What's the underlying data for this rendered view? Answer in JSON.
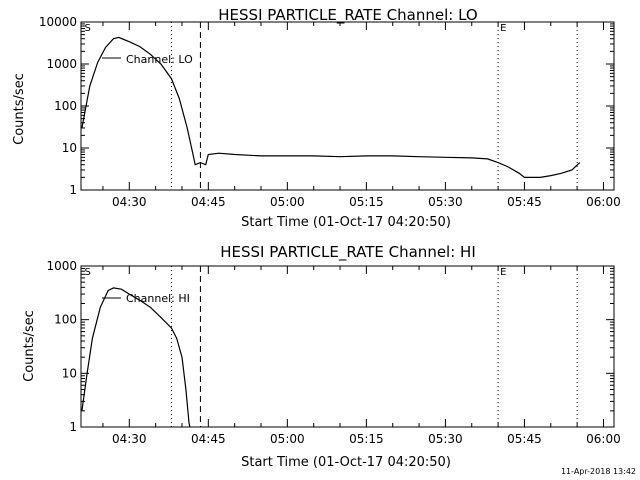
{
  "footer": {
    "timestamp": "11-Apr-2018 13:42"
  },
  "chart_data": [
    {
      "type": "line",
      "title": "HESSI PARTICLE_RATE Channel: LO",
      "xlabel": "Start Time (01-Oct-17 04:20:50)",
      "ylabel": "Counts/sec",
      "yscale": "log",
      "xlim": [
        "04:20:50",
        "06:02:00"
      ],
      "ylim": [
        1,
        10000
      ],
      "x_ticks": [
        "04:30",
        "04:45",
        "05:00",
        "05:15",
        "05:30",
        "05:45",
        "06:00"
      ],
      "y_ticks": [
        "1",
        "10",
        "100",
        "1000",
        "10000"
      ],
      "markers": [
        {
          "label": "S",
          "time": "04:21:30",
          "style": "none"
        },
        {
          "label": "",
          "time": "04:38:00",
          "style": "dotted"
        },
        {
          "label": "",
          "time": "04:43:30",
          "style": "dashed"
        },
        {
          "label": "E",
          "time": "05:40:00",
          "style": "dotted"
        },
        {
          "label": "",
          "time": "05:55:00",
          "style": "dotted"
        }
      ],
      "series": [
        {
          "name": "Channel: LO",
          "points": [
            [
              "04:21:00",
              30
            ],
            [
              "04:22:30",
              300
            ],
            [
              "04:24:00",
              1100
            ],
            [
              "04:25:30",
              2500
            ],
            [
              "04:27:00",
              4000
            ],
            [
              "04:28:00",
              4300
            ],
            [
              "04:30:00",
              3400
            ],
            [
              "04:32:00",
              2600
            ],
            [
              "04:34:00",
              1700
            ],
            [
              "04:36:00",
              1000
            ],
            [
              "04:38:00",
              450
            ],
            [
              "04:39:30",
              150
            ],
            [
              "04:41:00",
              30
            ],
            [
              "04:42:00",
              8
            ],
            [
              "04:42:30",
              4
            ],
            [
              "04:43:30",
              4.5
            ],
            [
              "04:44:30",
              4
            ],
            [
              "04:45:00",
              7
            ],
            [
              "04:47:00",
              7.5
            ],
            [
              "04:50:00",
              7
            ],
            [
              "04:55:00",
              6.5
            ],
            [
              "05:00:00",
              6.5
            ],
            [
              "05:05:00",
              6.5
            ],
            [
              "05:10:00",
              6.2
            ],
            [
              "05:15:00",
              6.5
            ],
            [
              "05:20:00",
              6.5
            ],
            [
              "05:25:00",
              6.2
            ],
            [
              "05:30:00",
              6
            ],
            [
              "05:35:00",
              5.8
            ],
            [
              "05:38:00",
              5.5
            ],
            [
              "05:40:00",
              4.5
            ],
            [
              "05:42:00",
              3.5
            ],
            [
              "05:44:00",
              2.5
            ],
            [
              "05:45:00",
              2
            ],
            [
              "05:48:00",
              2
            ],
            [
              "05:50:00",
              2.2
            ],
            [
              "05:52:00",
              2.5
            ],
            [
              "05:54:00",
              3
            ],
            [
              "05:55:30",
              4.5
            ]
          ]
        }
      ]
    },
    {
      "type": "line",
      "title": "HESSI PARTICLE_RATE Channel: HI",
      "xlabel": "Start Time (01-Oct-17 04:20:50)",
      "ylabel": "Counts/sec",
      "yscale": "log",
      "xlim": [
        "04:20:50",
        "06:02:00"
      ],
      "ylim": [
        1,
        1000
      ],
      "x_ticks": [
        "04:30",
        "04:45",
        "05:00",
        "05:15",
        "05:30",
        "05:45",
        "06:00"
      ],
      "y_ticks": [
        "1",
        "10",
        "100",
        "1000"
      ],
      "markers": [
        {
          "label": "S",
          "time": "04:21:30",
          "style": "none"
        },
        {
          "label": "",
          "time": "04:38:00",
          "style": "dotted"
        },
        {
          "label": "",
          "time": "04:43:30",
          "style": "dashed"
        },
        {
          "label": "E",
          "time": "05:40:00",
          "style": "dotted"
        },
        {
          "label": "",
          "time": "05:55:00",
          "style": "dotted"
        }
      ],
      "series": [
        {
          "name": "Channel: HI",
          "points": [
            [
              "04:21:00",
              2
            ],
            [
              "04:22:00",
              10
            ],
            [
              "04:23:00",
              45
            ],
            [
              "04:24:30",
              170
            ],
            [
              "04:26:00",
              350
            ],
            [
              "04:27:00",
              390
            ],
            [
              "04:28:30",
              370
            ],
            [
              "04:30:00",
              300
            ],
            [
              "04:32:00",
              230
            ],
            [
              "04:34:00",
              170
            ],
            [
              "04:36:00",
              110
            ],
            [
              "04:38:00",
              70
            ],
            [
              "04:39:00",
              45
            ],
            [
              "04:40:00",
              20
            ],
            [
              "04:40:45",
              5
            ],
            [
              "04:41:20",
              1.2
            ],
            [
              "04:41:30",
              1
            ]
          ]
        }
      ]
    }
  ]
}
